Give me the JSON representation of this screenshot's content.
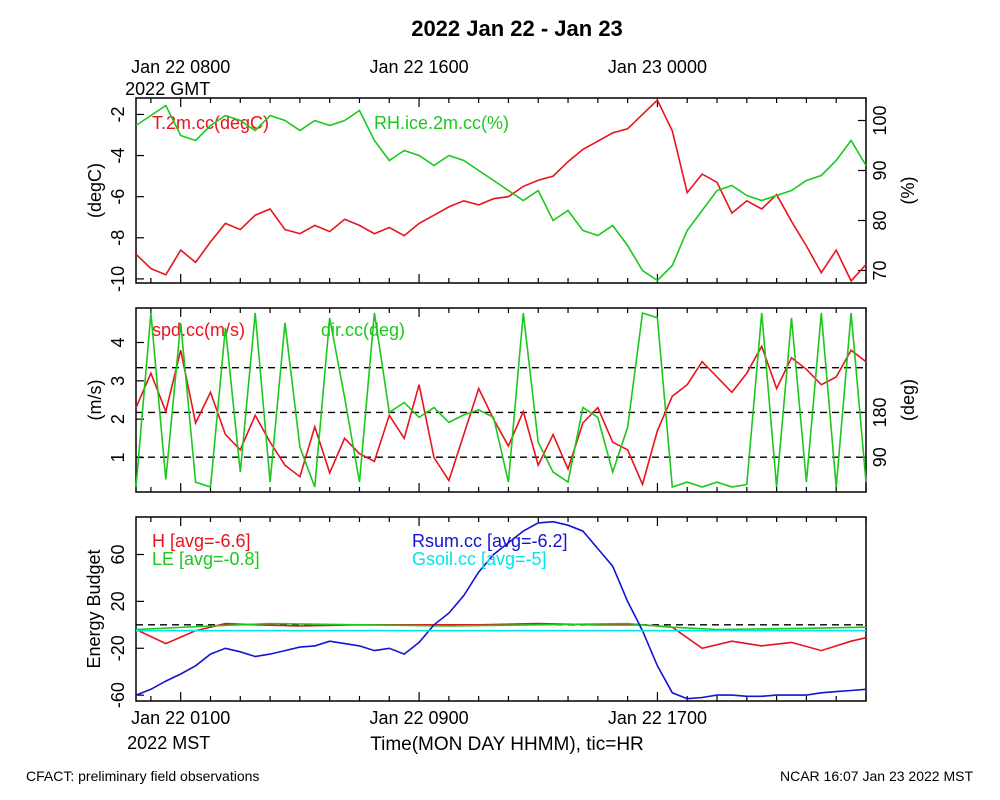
{
  "title": "2022 Jan 22 - Jan 23",
  "top_time_labels": [
    {
      "t": 0,
      "line1": "Jan 22 0800",
      "line2": "2022 GMT"
    },
    {
      "t": 8,
      "line1": "Jan 22 1600",
      "line2": ""
    },
    {
      "t": 16,
      "line1": "Jan 23 0000",
      "line2": ""
    }
  ],
  "bottom_time_labels": [
    {
      "t": 0,
      "line1": "Jan 22 0100",
      "line2": "2022 MST"
    },
    {
      "t": 8,
      "line1": "Jan 22 0900",
      "line2": ""
    },
    {
      "t": 16,
      "line1": "Jan 22 1700",
      "line2": ""
    }
  ],
  "xlabel": "Time(MON DAY HHMM), tic=HR",
  "footer_left": "CFACT: preliminary field observations",
  "footer_right": "NCAR 16:07 Jan 23 2022 MST",
  "colors": {
    "red": "#e8141c",
    "green": "#1cc81c",
    "blue": "#1414d2",
    "cyan": "#00e6e6"
  },
  "chart_data": [
    {
      "type": "line",
      "panel": "temperature-humidity",
      "xlim": [
        -1.5,
        23
      ],
      "ylabel": "(degC)",
      "ylim": [
        -10.2,
        -1.2
      ],
      "yticks": [
        -2,
        -4,
        -6,
        -8,
        -10
      ],
      "ylabel_right": "(%)",
      "ylim_right": [
        67.5,
        104.5
      ],
      "yticks_right": [
        100,
        90,
        80,
        70
      ],
      "series": [
        {
          "name": "T.2m.cc(degC)",
          "axis": "left",
          "color": "#e8141c",
          "x": [
            -1.5,
            -1,
            -0.5,
            0,
            0.5,
            1,
            1.5,
            2,
            2.5,
            3,
            3.5,
            4,
            4.5,
            5,
            5.5,
            6,
            6.5,
            7,
            7.5,
            8,
            8.5,
            9,
            9.5,
            10,
            10.5,
            11,
            11.5,
            12,
            12.5,
            13,
            13.5,
            14,
            14.5,
            15,
            15.5,
            16,
            16.5,
            17,
            17.5,
            18,
            18.5,
            19,
            19.5,
            20,
            20.5,
            21,
            21.5,
            22,
            22.5,
            23
          ],
          "y": [
            -8.8,
            -9.5,
            -9.8,
            -8.6,
            -9.2,
            -8.2,
            -7.3,
            -7.6,
            -6.9,
            -6.6,
            -7.6,
            -7.8,
            -7.4,
            -7.7,
            -7.1,
            -7.4,
            -7.8,
            -7.5,
            -7.9,
            -7.3,
            -6.9,
            -6.5,
            -6.2,
            -6.4,
            -6.1,
            -6.0,
            -5.5,
            -5.2,
            -5.0,
            -4.3,
            -3.7,
            -3.3,
            -2.9,
            -2.7,
            -2.0,
            -1.3,
            -2.8,
            -5.8,
            -4.9,
            -5.3,
            -6.8,
            -6.2,
            -6.6,
            -5.9,
            -7.2,
            -8.4,
            -9.7,
            -8.6,
            -10.1,
            -9.3
          ]
        },
        {
          "name": "RH.ice.2m.cc(%)",
          "axis": "right",
          "color": "#1cc81c",
          "x": [
            -1.5,
            -1,
            -0.5,
            0,
            0.5,
            1,
            1.5,
            2,
            2.5,
            3,
            3.5,
            4,
            4.5,
            5,
            5.5,
            6,
            6.5,
            7,
            7.5,
            8,
            8.5,
            9,
            9.5,
            10,
            10.5,
            11,
            11.5,
            12,
            12.5,
            13,
            13.5,
            14,
            14.5,
            15,
            15.5,
            16,
            16.5,
            17,
            17.5,
            18,
            18.5,
            19,
            19.5,
            20,
            20.5,
            21,
            21.5,
            22,
            22.5,
            23
          ],
          "y": [
            99,
            101,
            103,
            97,
            96,
            99,
            101,
            100,
            98,
            101,
            100,
            98,
            100,
            99,
            100,
            102,
            96,
            92,
            94,
            93,
            91,
            93,
            92,
            90,
            88,
            86,
            84,
            86,
            80,
            82,
            78,
            77,
            79,
            75,
            70,
            68,
            71,
            78,
            82,
            86,
            87,
            85,
            84,
            85,
            86,
            88,
            89,
            92,
            96,
            91
          ]
        }
      ],
      "hlines_dashed": []
    },
    {
      "type": "line",
      "panel": "wind",
      "xlim": [
        -1.5,
        23
      ],
      "ylabel": "(m/s)",
      "ylim": [
        0.1,
        4.9
      ],
      "yticks": [
        1,
        2,
        3,
        4
      ],
      "ylabel_right": "(deg)",
      "ylim_right": [
        20,
        390
      ],
      "yticks_right": [
        90,
        180
      ],
      "hlines_dashed_right": [
        90,
        180,
        270
      ],
      "series": [
        {
          "name": "spd.cc(m/s)",
          "axis": "left",
          "color": "#e8141c",
          "x": [
            -1.5,
            -1,
            -0.5,
            0,
            0.5,
            1,
            1.5,
            2,
            2.5,
            3,
            3.5,
            4,
            4.5,
            5,
            5.5,
            6,
            6.5,
            7,
            7.5,
            8,
            8.5,
            9,
            9.5,
            10,
            10.5,
            11,
            11.5,
            12,
            12.5,
            13,
            13.5,
            14,
            14.5,
            15,
            15.5,
            16,
            16.5,
            17,
            17.5,
            18,
            18.5,
            19,
            19.5,
            20,
            20.5,
            21,
            21.5,
            22,
            22.5,
            23
          ],
          "y": [
            2.3,
            3.2,
            2.2,
            3.8,
            1.9,
            2.7,
            1.6,
            1.2,
            2.1,
            1.4,
            0.8,
            0.5,
            1.8,
            0.6,
            1.5,
            1.1,
            0.9,
            2.1,
            1.5,
            2.9,
            1.0,
            0.4,
            1.6,
            2.8,
            2.0,
            1.3,
            2.2,
            0.8,
            1.6,
            0.7,
            1.9,
            2.3,
            1.4,
            1.2,
            0.3,
            1.7,
            2.6,
            2.9,
            3.5,
            3.1,
            2.7,
            3.2,
            3.9,
            2.8,
            3.6,
            3.3,
            2.9,
            3.1,
            3.8,
            3.5
          ]
        },
        {
          "name": "dir.cc(deg)",
          "axis": "right",
          "color": "#1cc81c",
          "x": [
            -1.5,
            -1,
            -0.5,
            0,
            0.5,
            1,
            1.5,
            2,
            2.5,
            3,
            3.5,
            4,
            4.5,
            5,
            5.5,
            6,
            6.5,
            7,
            7.5,
            8,
            8.5,
            9,
            9.5,
            10,
            10.5,
            11,
            11.5,
            12,
            12.5,
            13,
            13.5,
            14,
            14.5,
            15,
            15.5,
            16,
            16.5,
            17,
            17.5,
            18,
            18.5,
            19,
            19.5,
            20,
            20.5,
            21,
            21.5,
            22,
            22.5,
            23
          ],
          "y": [
            30,
            380,
            45,
            360,
            40,
            30,
            350,
            60,
            380,
            40,
            360,
            110,
            30,
            370,
            210,
            40,
            380,
            180,
            200,
            170,
            190,
            160,
            175,
            185,
            170,
            40,
            380,
            120,
            60,
            40,
            190,
            170,
            60,
            150,
            380,
            370,
            30,
            40,
            30,
            40,
            30,
            35,
            380,
            30,
            370,
            40,
            380,
            30,
            380,
            40
          ]
        }
      ]
    },
    {
      "type": "line",
      "panel": "energy-budget",
      "xlim": [
        -1.5,
        23
      ],
      "ylabel": "Energy Budget",
      "ylim": [
        -65,
        92
      ],
      "yticks": [
        60,
        20,
        -20,
        -60
      ],
      "hlines_dashed": [
        0
      ],
      "series": [
        {
          "name": "H [avg=-6.6]",
          "axis": "left",
          "color": "#e8141c",
          "x": [
            -1.5,
            -0.5,
            0.5,
            1.5,
            2.5,
            4,
            6,
            8,
            10,
            12,
            14,
            15.5,
            16.5,
            17.5,
            18.5,
            19.5,
            20.5,
            21.5,
            22.5,
            23
          ],
          "y": [
            -4,
            -16,
            -5,
            1,
            0,
            -1,
            0,
            0,
            0,
            1,
            0,
            0,
            -2,
            -20,
            -14,
            -18,
            -15,
            -22,
            -14,
            -11
          ]
        },
        {
          "name": "LE [avg=-0.8]",
          "axis": "left",
          "color": "#1cc81c",
          "x": [
            -1.5,
            1,
            3,
            6,
            9,
            12,
            15,
            16.5,
            18,
            21,
            23
          ],
          "y": [
            -4,
            -1,
            1,
            0,
            -1,
            0,
            1,
            -2,
            -4,
            -3,
            -2
          ]
        },
        {
          "name": "Rsum.cc [avg=-6.2]",
          "axis": "left",
          "color": "#1414d2",
          "x": [
            -1.5,
            -1,
            -0.5,
            0,
            0.5,
            1,
            1.5,
            2,
            2.5,
            3,
            3.5,
            4,
            4.5,
            5,
            5.5,
            6,
            6.5,
            7,
            7.5,
            8,
            8.5,
            9,
            9.5,
            10,
            10.5,
            11,
            11.5,
            12,
            12.5,
            13,
            13.5,
            14,
            14.5,
            15,
            15.5,
            16,
            16.5,
            17,
            17.5,
            18,
            18.5,
            19,
            19.5,
            20,
            20.5,
            21,
            21.5,
            22,
            22.5,
            23
          ],
          "y": [
            -60,
            -55,
            -48,
            -42,
            -35,
            -25,
            -20,
            -23,
            -27,
            -25,
            -22,
            -19,
            -18,
            -14,
            -16,
            -18,
            -22,
            -20,
            -25,
            -15,
            0,
            10,
            25,
            45,
            60,
            70,
            80,
            87,
            88,
            85,
            80,
            65,
            50,
            20,
            -5,
            -35,
            -58,
            -63,
            -62,
            -60,
            -60,
            -61,
            -61,
            -60,
            -60,
            -60,
            -58,
            -57,
            -56,
            -55
          ]
        },
        {
          "name": "Gsoil.cc [avg=-5]",
          "axis": "left",
          "color": "#00e6e6",
          "x": [
            -1.5,
            23
          ],
          "y": [
            -5,
            -5
          ]
        }
      ]
    }
  ]
}
